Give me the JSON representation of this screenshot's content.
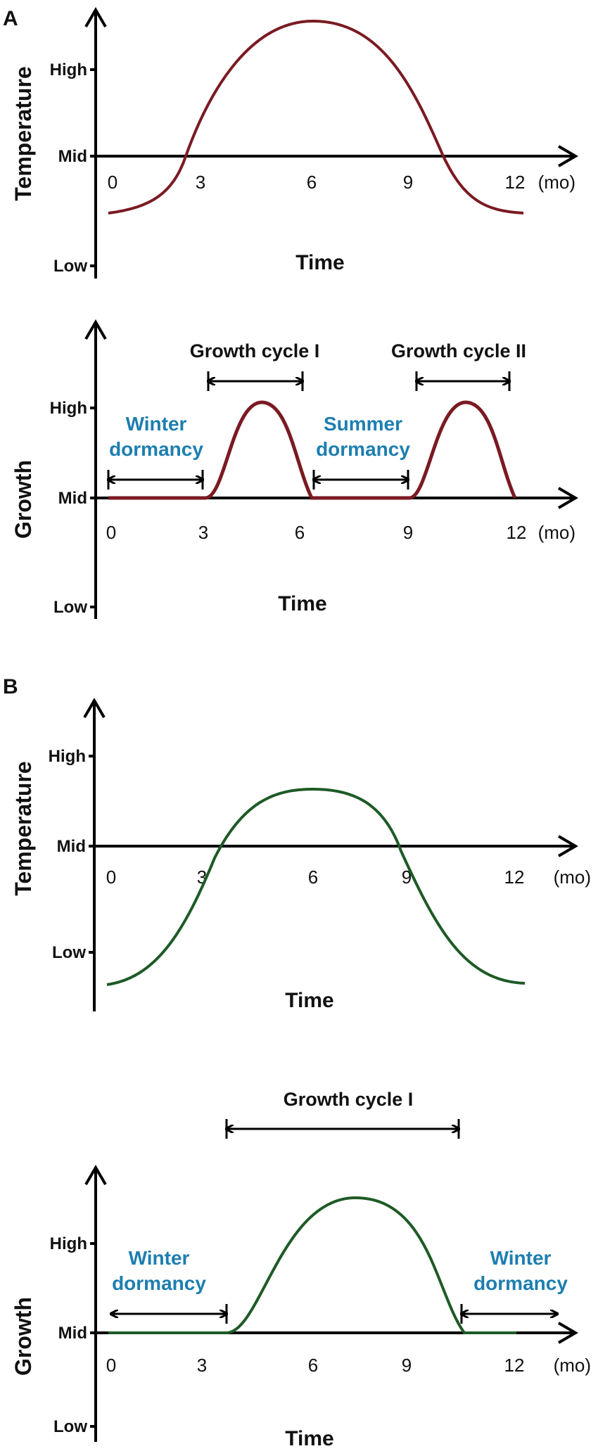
{
  "panels": [
    {
      "letter": "A"
    },
    {
      "letter": "B"
    }
  ],
  "common": {
    "time_label": "Time",
    "unit_label": "(mo)",
    "y_levels": [
      "High",
      "Mid",
      "Low"
    ],
    "x_ticks": [
      "0",
      "3",
      "6",
      "9",
      "12"
    ]
  },
  "colors": {
    "panel_a_curve": "#7a1a22",
    "panel_b_curve": "#1e5a26",
    "dormancy_text": "#1d7eb0"
  },
  "chart_data": [
    {
      "id": "A-temperature",
      "type": "line",
      "ylabel": "Temperature",
      "xlabel": "Time",
      "x_unit": "(mo)",
      "xlim": [
        0,
        12
      ],
      "y_levels": [
        "High",
        "Mid",
        "Low"
      ],
      "series": [
        {
          "x": [
            0,
            1,
            2,
            3,
            4,
            5,
            6,
            7,
            8,
            9,
            10,
            11,
            12
          ],
          "y_relative": [
            -0.65,
            -0.6,
            -0.45,
            0.15,
            0.65,
            0.95,
            1.05,
            0.95,
            0.7,
            0.3,
            -0.2,
            -0.55,
            -0.65
          ]
        }
      ]
    },
    {
      "id": "A-growth",
      "type": "line",
      "ylabel": "Growth",
      "xlabel": "Time",
      "x_unit": "(mo)",
      "xlim": [
        0,
        12
      ],
      "y_levels": [
        "High",
        "Mid",
        "Low"
      ],
      "annotations": {
        "cycles": [
          {
            "label": "Growth cycle I",
            "from": 3,
            "to": 6
          },
          {
            "label": "Growth cycle II",
            "from": 9,
            "to": 12
          }
        ],
        "dormancy": [
          {
            "line1": "Winter",
            "line2": "dormancy",
            "from": 0,
            "to": 3
          },
          {
            "line1": "Summer",
            "line2": "dormancy",
            "from": 6,
            "to": 9
          }
        ]
      }
    },
    {
      "id": "B-temperature",
      "type": "line",
      "ylabel": "Temperature",
      "xlabel": "Time",
      "x_unit": "(mo)",
      "xlim": [
        0,
        12
      ],
      "y_levels": [
        "High",
        "Mid",
        "Low"
      ]
    },
    {
      "id": "B-growth",
      "type": "line",
      "ylabel": "Growth",
      "xlabel": "Time",
      "x_unit": "(mo)",
      "xlim": [
        0,
        12
      ],
      "y_levels": [
        "High",
        "Mid",
        "Low"
      ],
      "annotations": {
        "cycles": [
          {
            "label": "Growth cycle I",
            "from": 3.5,
            "to": 10.5
          }
        ],
        "dormancy": [
          {
            "line1": "Winter",
            "line2": "dormancy",
            "from": 0,
            "to": 3.5
          },
          {
            "line1": "Winter",
            "line2": "dormancy",
            "from": 10.5,
            "to": 12
          }
        ]
      }
    }
  ]
}
